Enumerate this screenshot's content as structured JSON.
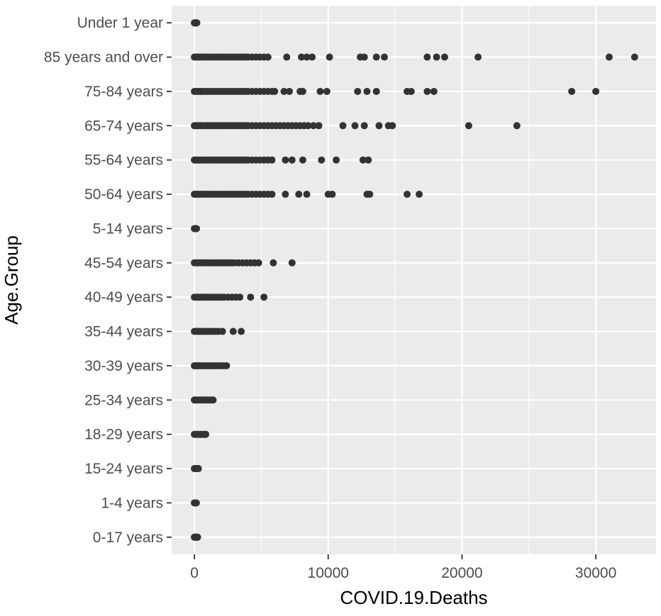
{
  "chart_data": {
    "type": "scatter",
    "xlabel": "COVID.19.Deaths",
    "ylabel": "Age.Group",
    "xlim": [
      -1700,
      34500
    ],
    "x_ticks": [
      0,
      10000,
      20000,
      30000
    ],
    "x_tick_labels": [
      "0",
      "10000",
      "20000",
      "30000"
    ],
    "grid": true,
    "legend": "none",
    "colors": {
      "panel": "#ebebeb",
      "grid": "#ffffff",
      "point": "#333333",
      "tick_label": "#4d4d4d"
    },
    "categories": [
      "Under 1 year",
      "85 years and over",
      "75-84 years",
      "65-74 years",
      "55-64 years",
      "50-64 years",
      "5-14 years",
      "45-54 years",
      "40-49 years",
      "35-44 years",
      "30-39 years",
      "25-34 years",
      "18-29 years",
      "15-24 years",
      "1-4 years",
      "0-17 years"
    ],
    "points": [
      {
        "group": "Under 1 year",
        "x": [
          0,
          30,
          60,
          90,
          120,
          150,
          180
        ]
      },
      {
        "group": "85 years and over",
        "x": [
          0,
          150,
          300,
          450,
          600,
          800,
          1000,
          1200,
          1400,
          1600,
          1800,
          2000,
          2200,
          2400,
          2600,
          2800,
          3000,
          3200,
          3400,
          3600,
          3800,
          4000,
          4300,
          4600,
          4900,
          5200,
          5500,
          6900,
          8000,
          8400,
          8800,
          10100,
          12400,
          12700,
          13600,
          14200,
          17400,
          18100,
          18700,
          21200,
          31000,
          32900
        ]
      },
      {
        "group": "75-84 years",
        "x": [
          0,
          150,
          300,
          450,
          600,
          800,
          1000,
          1200,
          1400,
          1600,
          1800,
          2000,
          2200,
          2400,
          2600,
          2800,
          3000,
          3200,
          3400,
          3600,
          3800,
          4000,
          4300,
          4600,
          4900,
          5200,
          5500,
          5800,
          6000,
          6700,
          7100,
          7900,
          8100,
          9400,
          9900,
          12200,
          12900,
          13600,
          15900,
          16200,
          17400,
          17900,
          28200,
          30000
        ]
      },
      {
        "group": "65-74 years",
        "x": [
          0,
          150,
          300,
          450,
          600,
          800,
          1000,
          1200,
          1400,
          1600,
          1800,
          2000,
          2200,
          2400,
          2600,
          2800,
          3000,
          3200,
          3400,
          3600,
          3800,
          4000,
          4300,
          4600,
          4900,
          5200,
          5500,
          5800,
          6100,
          6400,
          6700,
          7000,
          7300,
          7600,
          7900,
          8200,
          8500,
          8900,
          9300,
          11100,
          12000,
          12700,
          13800,
          14500,
          14800,
          20500,
          24100
        ]
      },
      {
        "group": "55-64 years",
        "x": [
          0,
          150,
          300,
          450,
          600,
          800,
          1000,
          1200,
          1400,
          1600,
          1800,
          2000,
          2200,
          2400,
          2600,
          2800,
          3000,
          3200,
          3400,
          3600,
          3800,
          4000,
          4300,
          4600,
          4900,
          5200,
          5500,
          5800,
          6800,
          7300,
          8100,
          9500,
          10600,
          12600,
          13000
        ]
      },
      {
        "group": "50-64 years",
        "x": [
          0,
          150,
          300,
          450,
          600,
          800,
          1000,
          1200,
          1400,
          1600,
          1800,
          2000,
          2200,
          2400,
          2600,
          2800,
          3000,
          3200,
          3400,
          3600,
          3800,
          4000,
          4300,
          4600,
          4900,
          5200,
          5500,
          5800,
          6800,
          7800,
          8400,
          10000,
          10300,
          12900,
          13100,
          15900,
          16800
        ]
      },
      {
        "group": "5-14 years",
        "x": [
          0,
          40,
          80,
          120,
          160
        ]
      },
      {
        "group": "45-54 years",
        "x": [
          0,
          150,
          300,
          450,
          600,
          800,
          1000,
          1200,
          1400,
          1600,
          1800,
          2000,
          2200,
          2400,
          2600,
          2800,
          3000,
          3300,
          3600,
          3900,
          4200,
          4500,
          4800,
          5900,
          7300
        ]
      },
      {
        "group": "40-49 years",
        "x": [
          0,
          150,
          300,
          450,
          600,
          800,
          1000,
          1200,
          1400,
          1600,
          1800,
          2000,
          2200,
          2500,
          2800,
          3100,
          3400,
          4200,
          5200
        ]
      },
      {
        "group": "35-44 years",
        "x": [
          0,
          150,
          300,
          450,
          600,
          800,
          1000,
          1200,
          1400,
          1600,
          1800,
          2100,
          2900,
          3500
        ]
      },
      {
        "group": "30-39 years",
        "x": [
          0,
          150,
          300,
          450,
          600,
          800,
          1000,
          1200,
          1400,
          1600,
          1800,
          2000,
          2200,
          2400
        ]
      },
      {
        "group": "25-34 years",
        "x": [
          0,
          150,
          300,
          450,
          600,
          800,
          1000,
          1200,
          1400
        ]
      },
      {
        "group": "18-29 years",
        "x": [
          0,
          150,
          300,
          450,
          600,
          750,
          850
        ]
      },
      {
        "group": "15-24 years",
        "x": [
          0,
          100,
          200,
          300
        ]
      },
      {
        "group": "1-4 years",
        "x": [
          0,
          50,
          100,
          150
        ]
      },
      {
        "group": "0-17 years",
        "x": [
          0,
          60,
          120,
          180,
          240
        ]
      }
    ]
  }
}
